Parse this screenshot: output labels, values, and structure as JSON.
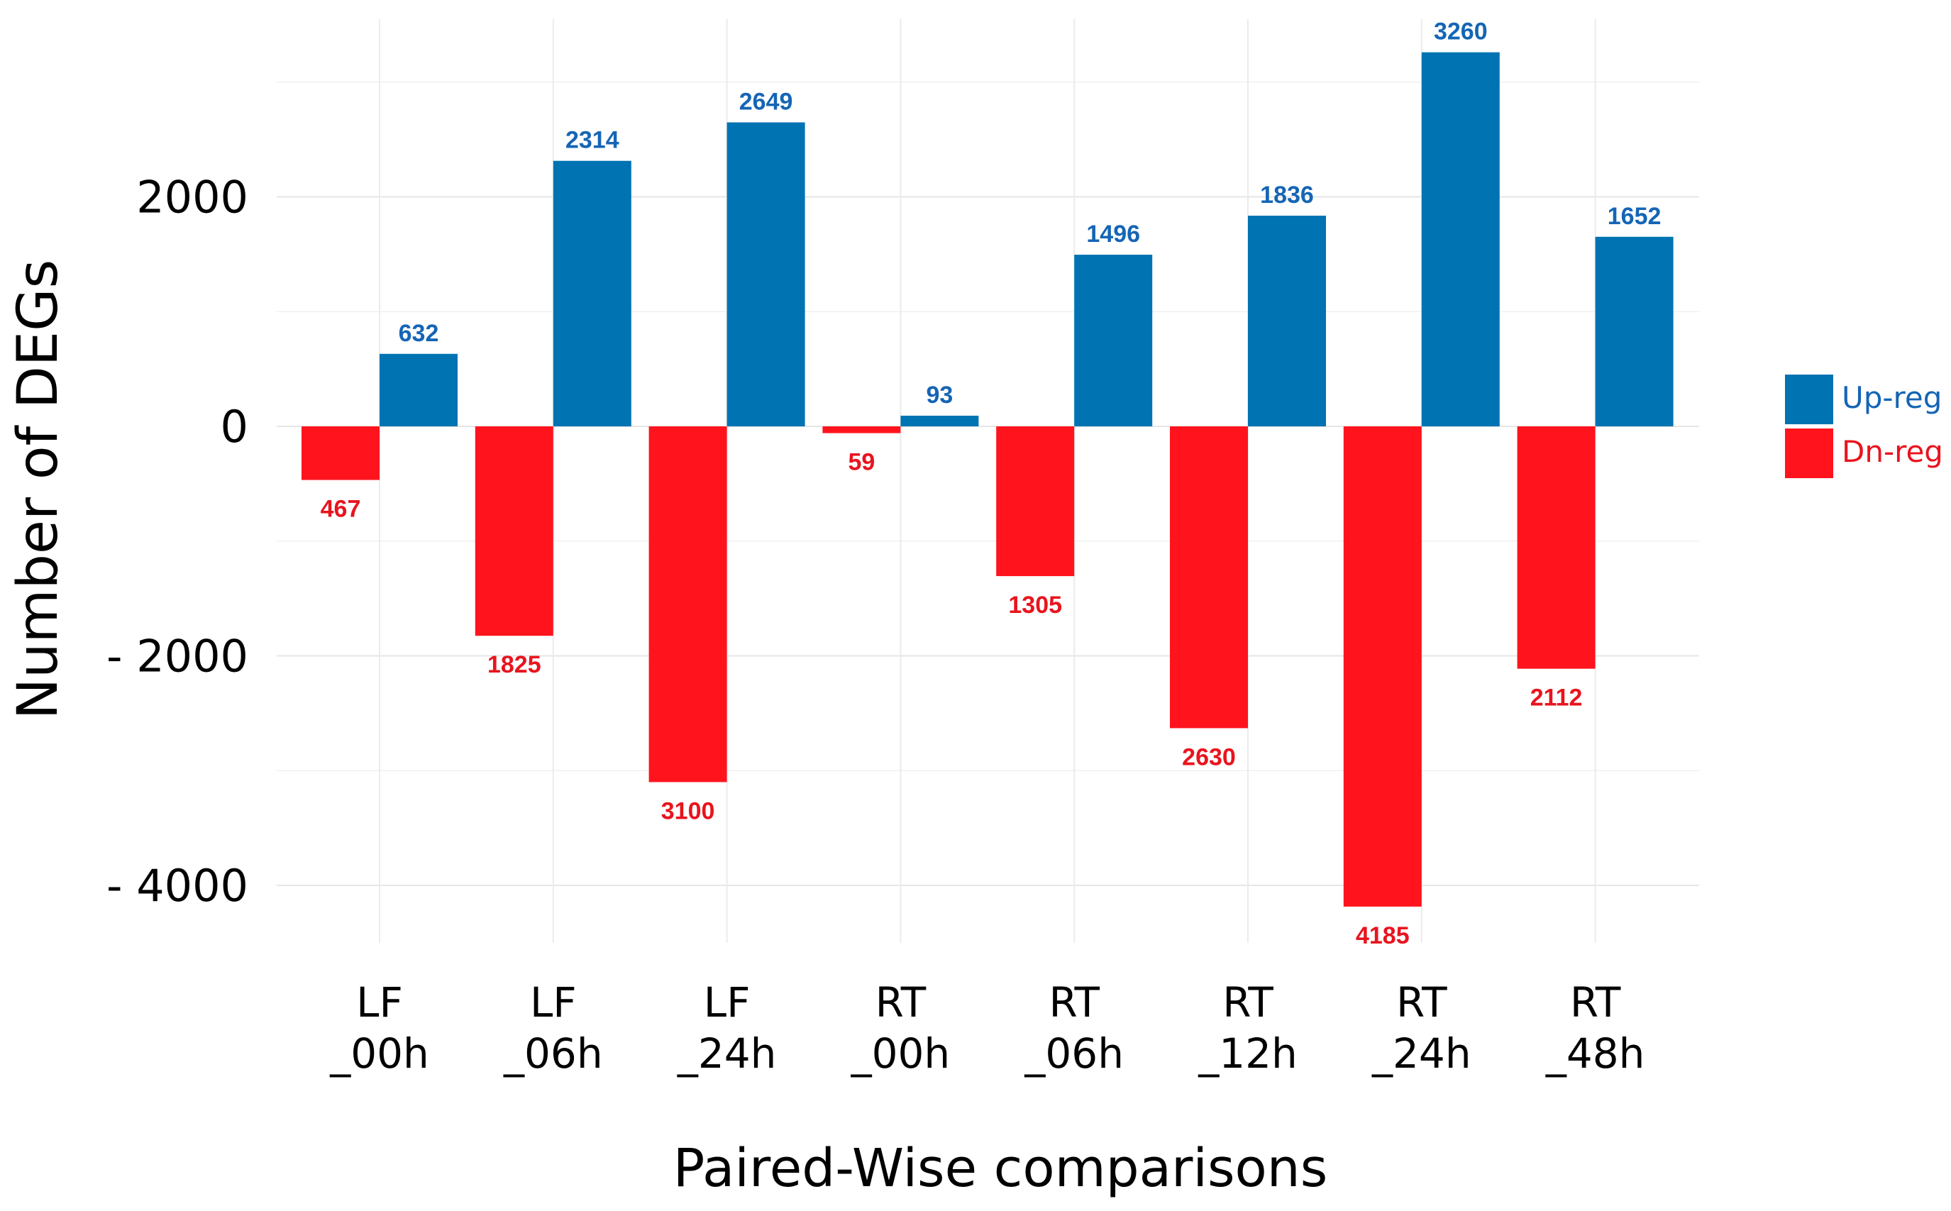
{
  "chart_data": {
    "type": "bar",
    "xlabel": "Paired-Wise comparisons",
    "ylabel": "Number of DEGs",
    "ylim": [
      -4500,
      3550
    ],
    "yticks": [
      2000,
      0,
      -2000,
      -4000
    ],
    "ytick_labels": [
      "2000",
      "0",
      "- 2000",
      "- 4000"
    ],
    "grid": true,
    "legend_position": "right",
    "categories": [
      {
        "line1": "LF",
        "line2": "_00h"
      },
      {
        "line1": "LF",
        "line2": "_06h"
      },
      {
        "line1": "LF",
        "line2": "_24h"
      },
      {
        "line1": "RT",
        "line2": "_00h"
      },
      {
        "line1": "RT",
        "line2": "_06h"
      },
      {
        "line1": "RT",
        "line2": "_12h"
      },
      {
        "line1": "RT",
        "line2": "_24h"
      },
      {
        "line1": "RT",
        "line2": "_48h"
      }
    ],
    "series": [
      {
        "name": "Dn-reg",
        "color": "#ff141e",
        "label_color": "#e8141e",
        "values": [
          -467,
          -1825,
          -3100,
          -59,
          -1305,
          -2630,
          -4185,
          -2112
        ],
        "labels": [
          "467",
          "1825",
          "3100",
          "59",
          "1305",
          "2630",
          "4185",
          "2112"
        ]
      },
      {
        "name": "Up-reg",
        "color": "#0073b2",
        "label_color": "#1565b5",
        "values": [
          632,
          2314,
          2649,
          93,
          1496,
          1836,
          3260,
          1652
        ],
        "labels": [
          "632",
          "2314",
          "2649",
          "93",
          "1496",
          "1836",
          "3260",
          "1652"
        ]
      }
    ],
    "legend": [
      {
        "name": "Up-reg",
        "color": "#0073b2",
        "text_color": "#1565b5"
      },
      {
        "name": "Dn-reg",
        "color": "#ff141e",
        "text_color": "#e8141e"
      }
    ]
  }
}
